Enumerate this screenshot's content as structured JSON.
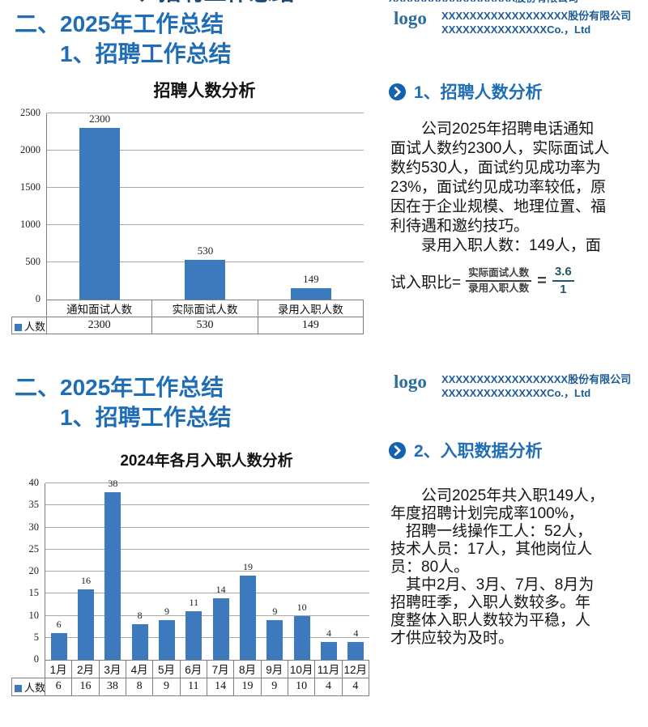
{
  "page": {
    "slides": [
      {
        "title_line1": "二、2025年工作总结",
        "title_line2": "1、招聘工作总结",
        "logo_text": "logo",
        "company_line1": "XXXXXXXXXXXXXXXXXX股份有限公司",
        "company_line2": "XXXXXXXXXXXXXXXCo.，Ltd",
        "section_heading": "1、招聘人数分析",
        "body_lines": [
          "　　公司2025年招聘电话通知",
          "面试人数约2300人，实际面试人",
          "数约530人，面试约见成功率为",
          "23%，面试约见成功率较低，原",
          "因在于企业规模、地理位置、福",
          "利待遇和邀约技巧。",
          "　　录用入职人数：149人，面"
        ],
        "formula": {
          "lead": "试入职比=",
          "numerator": "实际面试人数",
          "denominator": "录用入职人数",
          "equals": "=",
          "result_numerator": "3.6",
          "result_denominator": "1"
        }
      },
      {
        "title_line1": "二、2025年工作总结",
        "title_line2": "1、招聘工作总结",
        "logo_text": "logo",
        "company_line1": "XXXXXXXXXXXXXXXXXX股份有限公司",
        "company_line2": "XXXXXXXXXXXXXXXCo.，Ltd",
        "section_heading": "2、入职数据分析",
        "body_lines": [
          "　　公司2025年共入职149人，",
          "年度招聘计划完成率100%，",
          "　招聘一线操作工人：52人，",
          "技术人员：17人，其他岗位人",
          "员：80人。",
          "　其中2月、3月、7月、8月为",
          "招聘旺季，入职人数较多。年",
          "度整体入职人数较为平稳，人",
          "才供应较为及时。"
        ]
      }
    ]
  },
  "colors": {
    "title_blue": "#1f6eb5",
    "bar_blue": "#3c79bd",
    "icon_blue": "#1362ae",
    "company_blue": "#1d5c96"
  },
  "chart_data": [
    {
      "type": "bar",
      "title": "招聘人数分析",
      "categories": [
        "通知面试人数",
        "实际面试人数",
        "录用入职人数"
      ],
      "series": [
        {
          "name": "人数",
          "values": [
            2300,
            530,
            149
          ]
        }
      ],
      "ylim": [
        0,
        2500
      ],
      "ytick_step": 500,
      "grid": true,
      "legend": "人数",
      "legend_position": "data-table-left",
      "bar_color": "#3c79bd",
      "data_table_shown": true
    },
    {
      "type": "bar",
      "title": "2024年各月入职人数分析",
      "categories": [
        "1月",
        "2月",
        "3月",
        "4月",
        "5月",
        "6月",
        "7月",
        "8月",
        "9月",
        "10月",
        "11月",
        "12月"
      ],
      "series": [
        {
          "name": "人数",
          "values": [
            6,
            16,
            38,
            8,
            9,
            11,
            14,
            19,
            9,
            10,
            4,
            4
          ]
        }
      ],
      "ylim": [
        0,
        40
      ],
      "ytick_step": 5,
      "grid": true,
      "legend": "人数",
      "legend_position": "data-table-left",
      "bar_color": "#3c79bd",
      "data_table_shown": true
    }
  ]
}
